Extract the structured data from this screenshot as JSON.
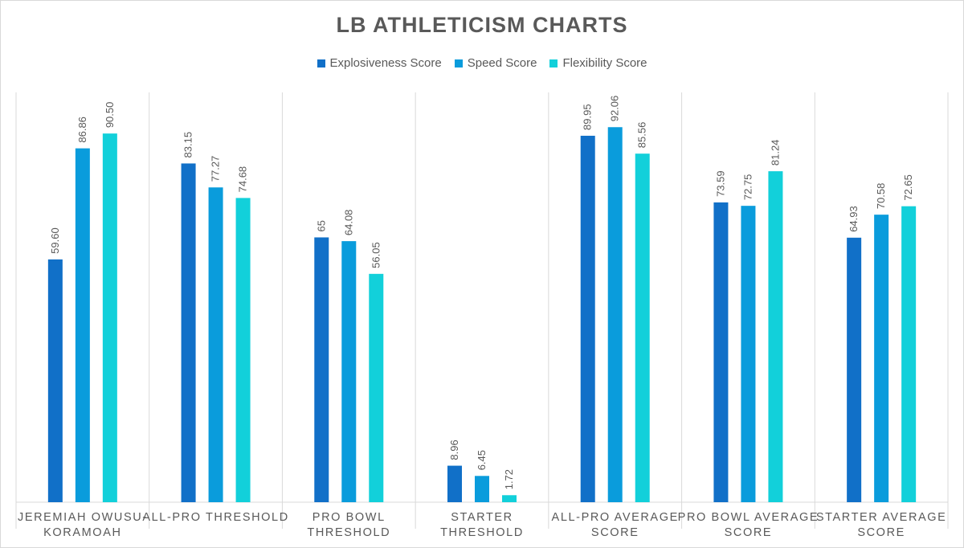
{
  "chart_data": {
    "type": "bar",
    "title": "LB ATHLETICISM CHARTS",
    "xlabel": "",
    "ylabel": "",
    "ylim": [
      0,
      100
    ],
    "grid": false,
    "legend_position": "top",
    "categories": [
      [
        "JEREMIAH OWUSU-",
        "KORAMOAH"
      ],
      [
        "ALL-PRO THRESHOLD"
      ],
      [
        "PRO BOWL",
        "THRESHOLD"
      ],
      [
        "STARTER",
        "THRESHOLD"
      ],
      [
        "ALL-PRO AVERAGE",
        "SCORE"
      ],
      [
        "PRO BOWL AVERAGE",
        "SCORE"
      ],
      [
        "STARTER AVERAGE",
        "SCORE"
      ]
    ],
    "series": [
      {
        "name": "Explosiveness Score",
        "color": "#1170C8",
        "values": [
          59.6,
          83.15,
          65,
          8.96,
          89.95,
          73.59,
          64.93
        ],
        "labels": [
          "59.60",
          "83.15",
          "65",
          "8.96",
          "89.95",
          "73.59",
          "64.93"
        ]
      },
      {
        "name": "Speed Score",
        "color": "#0A9CDC",
        "values": [
          86.86,
          77.27,
          64.08,
          6.45,
          92.06,
          72.75,
          70.58
        ],
        "labels": [
          "86.86",
          "77.27",
          "64.08",
          "6.45",
          "92.06",
          "72.75",
          "70.58"
        ]
      },
      {
        "name": "Flexibility Score",
        "color": "#12D0DA",
        "values": [
          90.5,
          74.68,
          56.05,
          1.72,
          85.56,
          81.24,
          72.65
        ],
        "labels": [
          "90.50",
          "74.68",
          "56.05",
          "1.72",
          "85.56",
          "81.24",
          "72.65"
        ]
      }
    ]
  }
}
